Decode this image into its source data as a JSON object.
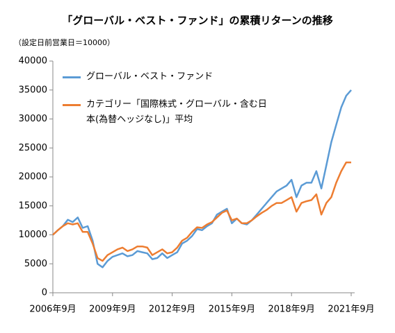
{
  "chart_data": {
    "type": "line",
    "title": "「グローバル・ベスト・ファンド」の累積リターンの推移",
    "subtitle": "（設定日前営業日＝10000）",
    "x": [
      "2006-09",
      "2006-12",
      "2007-03",
      "2007-06",
      "2007-09",
      "2007-12",
      "2008-03",
      "2008-06",
      "2008-09",
      "2008-12",
      "2009-03",
      "2009-06",
      "2009-09",
      "2009-12",
      "2010-03",
      "2010-06",
      "2010-09",
      "2010-12",
      "2011-03",
      "2011-06",
      "2011-09",
      "2011-12",
      "2012-03",
      "2012-06",
      "2012-09",
      "2012-12",
      "2013-03",
      "2013-06",
      "2013-09",
      "2013-12",
      "2014-03",
      "2014-06",
      "2014-09",
      "2014-12",
      "2015-03",
      "2015-06",
      "2015-09",
      "2015-12",
      "2016-03",
      "2016-06",
      "2016-09",
      "2016-12",
      "2017-03",
      "2017-06",
      "2017-09",
      "2017-12",
      "2018-03",
      "2018-06",
      "2018-09",
      "2018-12",
      "2019-03",
      "2019-06",
      "2019-09",
      "2019-12",
      "2020-03",
      "2020-06",
      "2020-09",
      "2020-12",
      "2021-03",
      "2021-06",
      "2021-09"
    ],
    "series": [
      {
        "name": "グローバル・ベスト・ファンド",
        "color": "#5b9bd5",
        "values": [
          10000,
          10800,
          11500,
          12600,
          12200,
          13000,
          11200,
          11500,
          9000,
          5000,
          4400,
          5500,
          6200,
          6500,
          6800,
          6300,
          6500,
          7200,
          7000,
          6800,
          5800,
          6000,
          6800,
          6000,
          6500,
          7000,
          8500,
          9000,
          9800,
          11000,
          10800,
          11500,
          12000,
          13500,
          14000,
          14500,
          12000,
          12800,
          12000,
          11800,
          12500,
          13500,
          14500,
          15500,
          16500,
          17500,
          18000,
          18500,
          19500,
          16500,
          18500,
          19000,
          19000,
          21000,
          18000,
          22000,
          26000,
          29000,
          32000,
          34000,
          35000
        ]
      },
      {
        "name": "カテゴリー「国際株式・グローバル・含む日本(為替ヘッジなし)」平均",
        "color": "#ed7d31",
        "values": [
          10000,
          10800,
          11500,
          12000,
          11800,
          12000,
          10500,
          10500,
          8500,
          6000,
          5500,
          6500,
          7000,
          7500,
          7800,
          7200,
          7500,
          8000,
          8000,
          7800,
          6500,
          7000,
          7500,
          6800,
          7000,
          7800,
          9000,
          9500,
          10500,
          11300,
          11200,
          11800,
          12200,
          13000,
          13800,
          14200,
          12500,
          12800,
          12000,
          12000,
          12500,
          13200,
          13800,
          14300,
          15000,
          15500,
          15500,
          16000,
          16500,
          14000,
          15500,
          15800,
          16000,
          17000,
          13500,
          15500,
          16500,
          19000,
          21000,
          22500,
          22500
        ]
      }
    ],
    "xlim": [
      "2006-09",
      "2021-09"
    ],
    "xticks": [
      {
        "value": "2006-09",
        "label": "2006年9月"
      },
      {
        "value": "2009-09",
        "label": "2009年9月"
      },
      {
        "value": "2012-09",
        "label": "2012年9月"
      },
      {
        "value": "2015-09",
        "label": "2015年9月"
      },
      {
        "value": "2018-09",
        "label": "2018年9月"
      },
      {
        "value": "2021-09",
        "label": "2021年9月"
      }
    ],
    "ylim": [
      0,
      40000
    ],
    "yticks": [
      0,
      5000,
      10000,
      15000,
      20000,
      25000,
      30000,
      35000,
      40000
    ],
    "grid": false
  }
}
